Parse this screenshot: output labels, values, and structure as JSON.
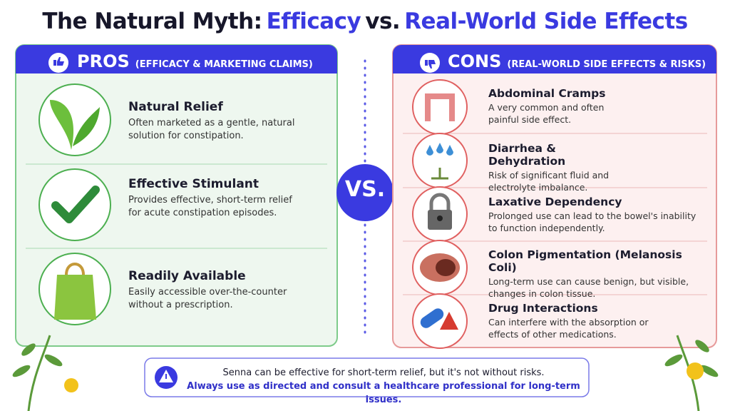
{
  "title": {
    "part1": "The Natural Myth:",
    "part2": "Efficacy",
    "part3": "vs.",
    "part4": "Real-World Side Effects"
  },
  "pros": {
    "heading": "PROS",
    "subheading": "(EFFICACY & MARKETING CLAIMS)",
    "items": [
      {
        "title": "Natural Relief",
        "text": "Often marketed as a gentle, natural solution for constipation."
      },
      {
        "title": "Effective Stimulant",
        "text": "Provides effective, short-term relief for acute constipation episodes."
      },
      {
        "title": "Readily Available",
        "text": "Easily accessible over-the-counter without a prescription."
      }
    ]
  },
  "vs": "VS.",
  "cons": {
    "heading": "CONS",
    "subheading": "(REAL-WORLD SIDE EFFECTS & RISKS)",
    "items": [
      {
        "title": "Abdominal Cramps",
        "text": "A very common and often painful side effect."
      },
      {
        "title": "Diarrhea & Dehydration",
        "text": "Risk of significant fluid and electrolyte imbalance."
      },
      {
        "title": "Laxative Dependency",
        "text": "Prolonged use can lead to the bowel's inability to function independently."
      },
      {
        "title": "Colon Pigmentation (Melanosis Coli)",
        "text": "Long-term use can cause benign, but visible, changes in colon tissue."
      },
      {
        "title": "Drug Interactions",
        "text": "Can interfere with the absorption or effects of other medications."
      }
    ]
  },
  "footer": {
    "line1": "Senna can be effective for short-term relief, but it's not without risks.",
    "line2": "Always use as directed and consult a healthcare professional for long-term issues."
  }
}
